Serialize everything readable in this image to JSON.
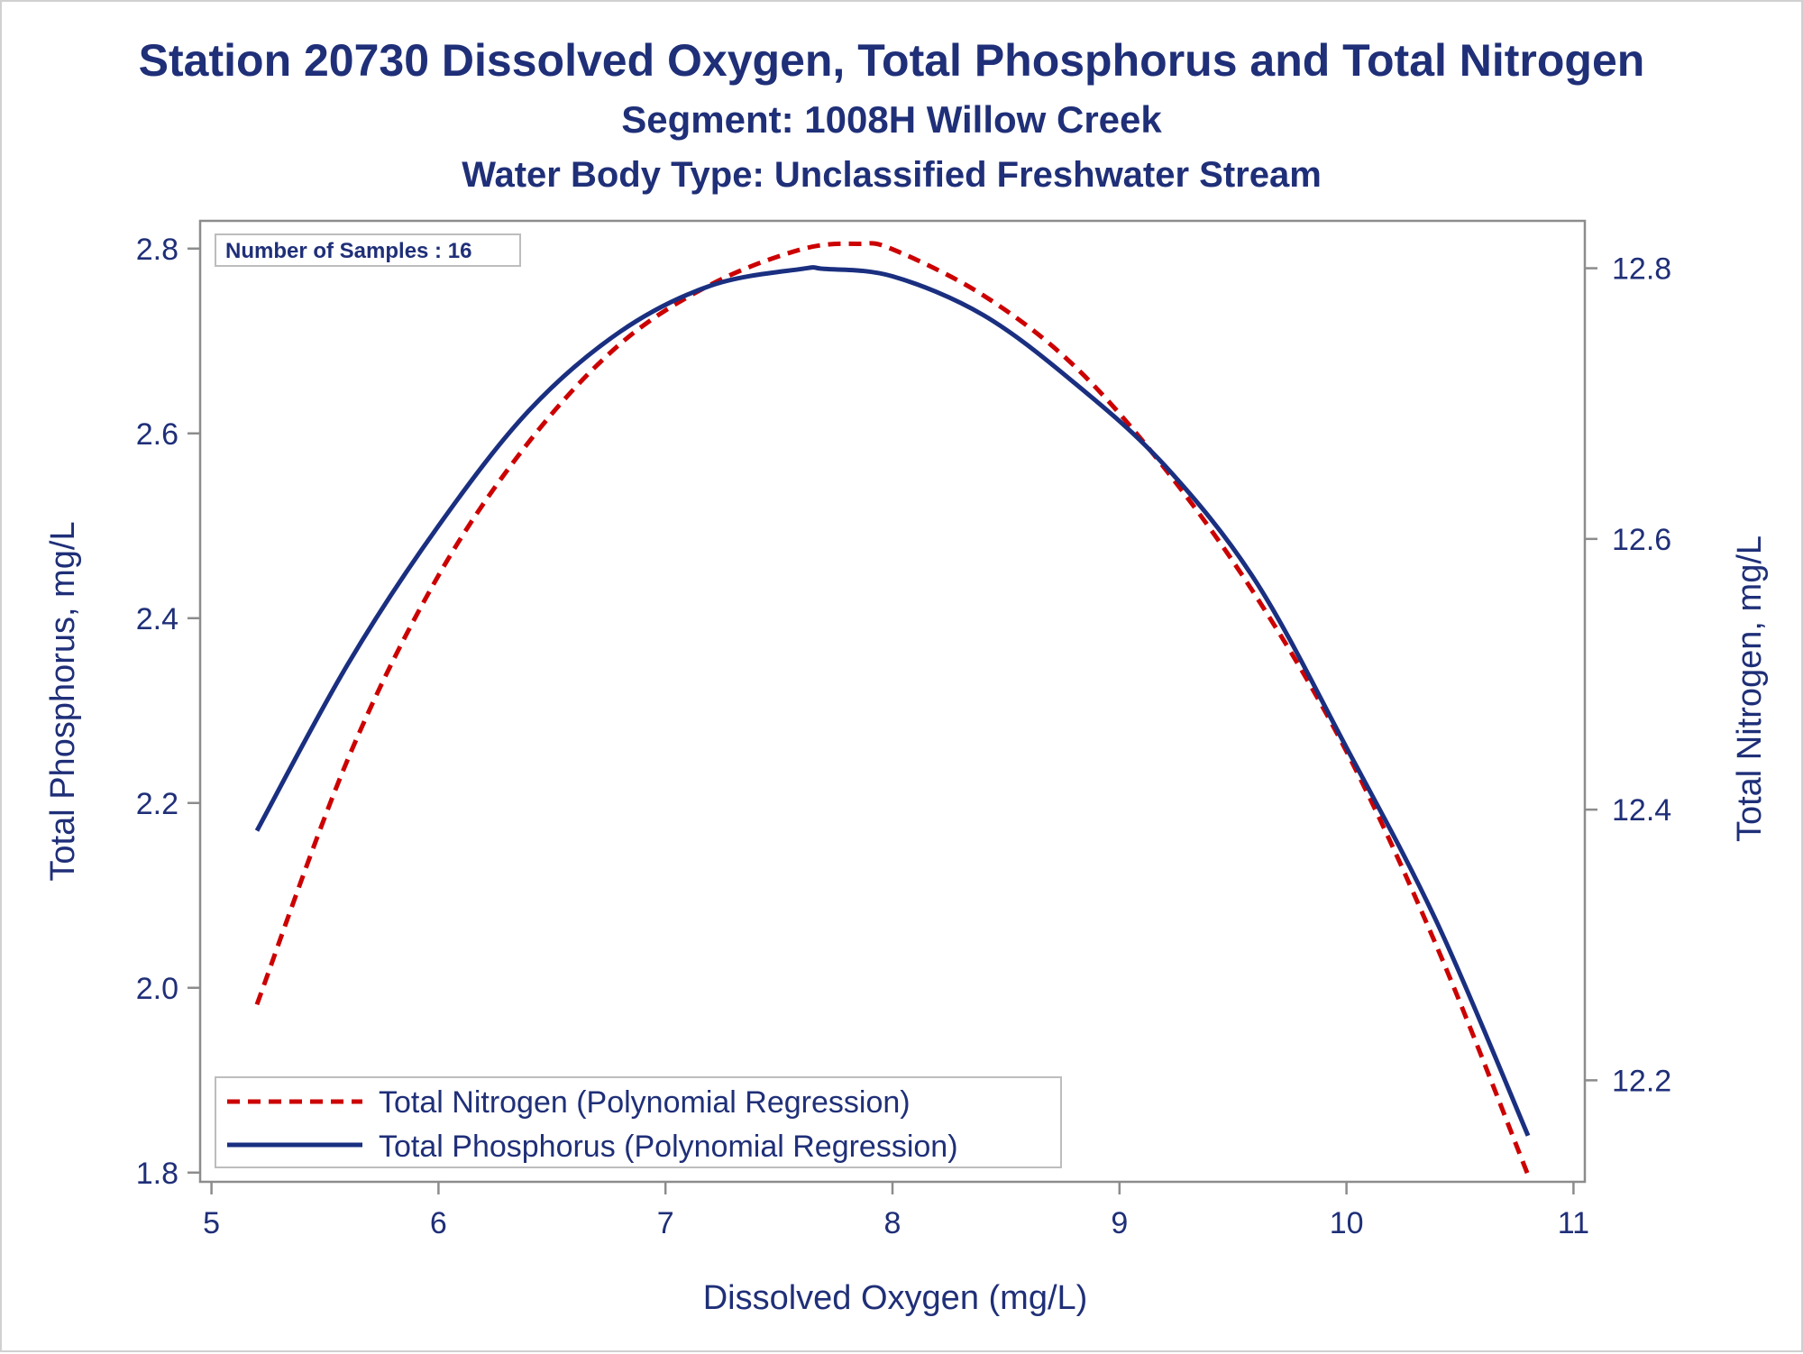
{
  "chart_data": {
    "type": "line",
    "title": "Station 20730  Dissolved Oxygen, Total Phosphorus and Total Nitrogen",
    "subtitle": "Segment: 1008H  Willow Creek",
    "subtitle2": "Water Body Type: Unclassified Freshwater Stream",
    "xlabel": "Dissolved Oxygen (mg/L)",
    "ylabel_left": "Total Phosphorus, mg/L",
    "ylabel_right": "Total Nitrogen, mg/L",
    "xlim": [
      4.95,
      11.05
    ],
    "ylim_left": [
      1.79,
      2.83
    ],
    "ylim_right": [
      12.125,
      12.835
    ],
    "x_ticks": [
      "5",
      "6",
      "7",
      "8",
      "9",
      "10",
      "11"
    ],
    "y_left_ticks": [
      "1.8",
      "2.0",
      "2.2",
      "2.4",
      "2.6",
      "2.8"
    ],
    "y_right_ticks": [
      "12.2",
      "12.4",
      "12.6",
      "12.8"
    ],
    "annotation": "Number of Samples : 16",
    "legend_position": "bottom-left inside",
    "series": [
      {
        "name": "Total Nitrogen (Polynomial Regression)",
        "axis": "right",
        "style": "dashed",
        "color": "#cc0000",
        "x": [
          5.2,
          5.6,
          6.0,
          6.4,
          6.8,
          7.2,
          7.6,
          7.85,
          8.0,
          8.4,
          8.8,
          9.2,
          9.6,
          10.0,
          10.4,
          10.8
        ],
        "y": [
          12.256,
          12.437,
          12.573,
          12.672,
          12.744,
          12.788,
          12.814,
          12.818,
          12.814,
          12.78,
          12.728,
          12.652,
          12.558,
          12.443,
          12.298,
          12.13
        ]
      },
      {
        "name": "Total Phosphorus (Polynomial Regression)",
        "axis": "left",
        "style": "solid",
        "color": "#1a2f80",
        "x": [
          5.2,
          5.6,
          6.0,
          6.4,
          6.8,
          7.2,
          7.6,
          7.7,
          8.0,
          8.4,
          8.8,
          9.2,
          9.6,
          10.0,
          10.4,
          10.8
        ],
        "y": [
          2.17,
          2.35,
          2.5,
          2.625,
          2.71,
          2.76,
          2.778,
          2.778,
          2.77,
          2.728,
          2.655,
          2.565,
          2.44,
          2.26,
          2.07,
          1.84
        ]
      }
    ]
  }
}
